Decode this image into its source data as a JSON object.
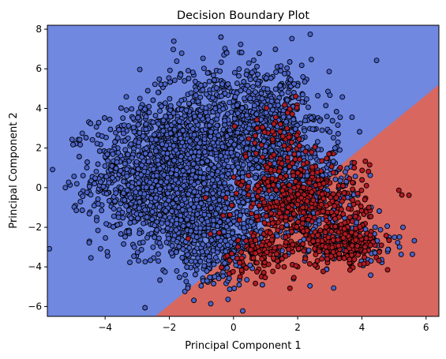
{
  "chart_data": {
    "type": "scatter",
    "title": "Decision Boundary Plot",
    "xlabel": "Principal Component 1",
    "ylabel": "Principal Component 2",
    "xlim": [
      -5.8,
      6.4
    ],
    "ylim": [
      -6.5,
      8.2
    ],
    "xticks": [
      -4,
      -2,
      0,
      2,
      4,
      6
    ],
    "yticks": [
      -6,
      -4,
      -2,
      0,
      2,
      4,
      6,
      8
    ],
    "grid": false,
    "legend": "none",
    "decision_boundary": {
      "description": "linear boundary separating two class regions",
      "points": [
        [
          -2.5,
          -6.5
        ],
        [
          6.4,
          5.2
        ]
      ],
      "region_above_color": "#7088e0",
      "region_below_color": "#d8675f"
    },
    "classes": [
      {
        "label": "0",
        "color": "#4a63c9",
        "region_color": "#7088e0"
      },
      {
        "label": "1",
        "color": "#b01a22",
        "region_color": "#d8675f"
      }
    ],
    "clusters": [
      {
        "class": "0",
        "center": [
          -2.2,
          0.5
        ],
        "spread": [
          1.1,
          1.7
        ],
        "count": 1300
      },
      {
        "class": "0",
        "center": [
          -0.5,
          3.0
        ],
        "spread": [
          1.2,
          1.6
        ],
        "count": 700
      },
      {
        "class": "0",
        "center": [
          1.2,
          2.5
        ],
        "spread": [
          0.9,
          1.8
        ],
        "count": 600
      },
      {
        "class": "0",
        "center": [
          -0.5,
          -2.5
        ],
        "spread": [
          0.9,
          1.2
        ],
        "count": 500
      },
      {
        "class": "0",
        "center": [
          2.2,
          -0.5
        ],
        "spread": [
          0.9,
          1.3
        ],
        "count": 350
      },
      {
        "class": "0",
        "center": [
          3.8,
          -2.8
        ],
        "spread": [
          0.7,
          0.5
        ],
        "count": 120
      },
      {
        "class": "1",
        "center": [
          2.2,
          -0.8
        ],
        "spread": [
          1.0,
          1.2
        ],
        "count": 450
      },
      {
        "class": "1",
        "center": [
          3.4,
          -2.9
        ],
        "spread": [
          0.6,
          0.5
        ],
        "count": 220
      },
      {
        "class": "1",
        "center": [
          0.8,
          -3.3
        ],
        "spread": [
          0.6,
          0.6
        ],
        "count": 90
      },
      {
        "class": "1",
        "center": [
          1.5,
          2.8
        ],
        "spread": [
          0.5,
          0.9
        ],
        "count": 50
      }
    ]
  }
}
